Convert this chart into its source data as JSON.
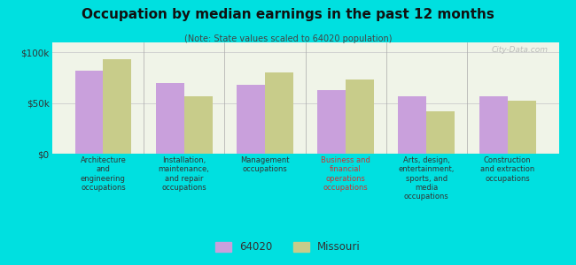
{
  "title": "Occupation by median earnings in the past 12 months",
  "subtitle": "(Note: State values scaled to 64020 population)",
  "categories": [
    "Architecture\nand\nengineering\noccupations",
    "Installation,\nmaintenance,\nand repair\noccupations",
    "Management\noccupations",
    "Business and\nfinancial\noperations\noccupations",
    "Arts, design,\nentertainment,\nsports, and\nmedia\noccupations",
    "Construction\nand extraction\noccupations"
  ],
  "values_64020": [
    82000,
    70000,
    68000,
    63000,
    57000,
    57000
  ],
  "values_missouri": [
    93000,
    57000,
    80000,
    73000,
    42000,
    52000
  ],
  "color_64020": "#c9a0dc",
  "color_missouri": "#c8cc8a",
  "bar_width": 0.35,
  "ylim": [
    0,
    110000
  ],
  "yticks": [
    0,
    50000,
    100000
  ],
  "yticklabels": [
    "$0",
    "$50k",
    "$100k"
  ],
  "background_color": "#00e0e0",
  "plot_bg_color": "#f0f4e8",
  "legend_labels": [
    "64020",
    "Missouri"
  ],
  "watermark": "City-Data.com",
  "highlight_category_index": 3,
  "highlight_color": "#cc3333"
}
